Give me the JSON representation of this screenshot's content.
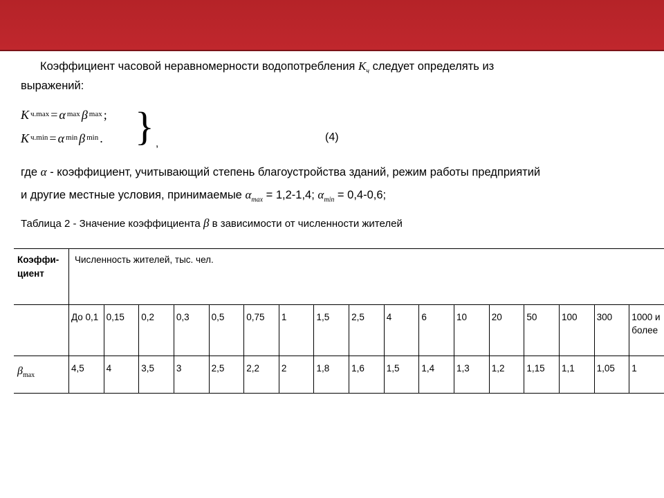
{
  "colors": {
    "header_top": "#b52328",
    "header_bottom": "#c0272d",
    "header_border": "#7a1317",
    "page_bg": "#ffffff",
    "text": "#000000",
    "table_border": "#000000"
  },
  "para1_a": "Коэффициент часовой неравномерности водопотребления ",
  "para1_sym": "K",
  "para1_sym_sub": "ч",
  "para1_b": " следует определять из",
  "para1_c": "выражений:",
  "formula": {
    "line1": {
      "K": "K",
      "sub1": "ч.max",
      "eq": " = ",
      "a": "α",
      "asub": "max",
      "b": "β",
      "bsub": "max",
      "tail": " ;"
    },
    "line2": {
      "K": "K",
      "sub1": "ч.min",
      "eq": " = ",
      "a": "α",
      "asub": "min",
      "b": "β",
      "bsub": "min",
      "tail": " ."
    },
    "brace": "}",
    "comma": ",",
    "eqnum": "(4)"
  },
  "para2_a": "где ",
  "para2_sym": "α",
  "para2_b": " - коэффициент, учитывающий степень благоустройства зданий, режим работы предприятий",
  "para2_c": "и другие местные условия, принимаемые ",
  "para2_amax": "α",
  "para2_amax_sub": "max",
  "para2_eq1": " = ",
  "para2_v1": "1,2-1,4; ",
  "para2_amin": "α",
  "para2_amin_sub": "min",
  "para2_eq2": " = ",
  "para2_v2": "0,4-0,6;",
  "table_caption_a": "Таблица 2 - Значение коэффициента ",
  "table_caption_sym": "β",
  "table_caption_b": " в зависимости от численности жителей",
  "table": {
    "coef_label": "Коэффи-циент",
    "pop_header": "Численность жителей, тыс. чел.",
    "columns": [
      "До 0,1",
      "0,15",
      "0,2",
      "0,3",
      "0,5",
      "0,75",
      "1",
      "1,5",
      "2,5",
      "4",
      "6",
      "10",
      "20",
      "50",
      "100",
      "300",
      "1000 и более"
    ],
    "row_sym": "β",
    "row_sym_sub": "max",
    "row_values": [
      "4,5",
      "4",
      "3,5",
      "3",
      "2,5",
      "2,2",
      "2",
      "1,8",
      "1,6",
      "1,5",
      "1,4",
      "1,3",
      "1,2",
      "1,15",
      "1,1",
      "1,05",
      "1"
    ]
  }
}
